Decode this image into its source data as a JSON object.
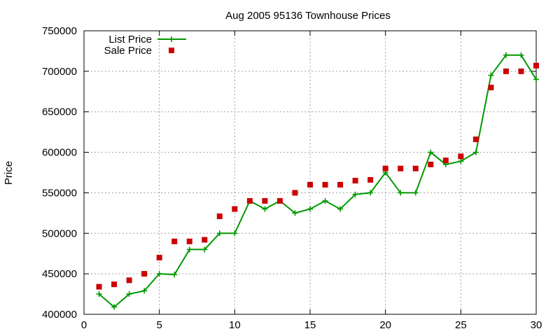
{
  "chart_data": {
    "type": "line",
    "title": "Aug 2005 95136 Townhouse Prices",
    "xlabel": "",
    "ylabel": "Price",
    "xlim": [
      0,
      30
    ],
    "ylim": [
      400000,
      750000
    ],
    "xticks": [
      0,
      5,
      10,
      15,
      20,
      25,
      30
    ],
    "yticks": [
      400000,
      450000,
      500000,
      550000,
      600000,
      650000,
      700000,
      750000
    ],
    "grid": true,
    "legend_position": "top-left",
    "x": [
      1,
      2,
      3,
      4,
      5,
      6,
      7,
      8,
      9,
      10,
      11,
      12,
      13,
      14,
      15,
      16,
      17,
      18,
      19,
      20,
      21,
      22,
      23,
      24,
      25,
      26,
      27,
      28,
      29,
      30
    ],
    "series": [
      {
        "name": "List Price",
        "style": "line-with-plus-markers",
        "color": "#009900",
        "values": [
          425000,
          409000,
          425000,
          429000,
          450000,
          449000,
          480000,
          480000,
          500000,
          500000,
          540000,
          530000,
          540000,
          525000,
          530000,
          540000,
          530000,
          548000,
          550000,
          575000,
          550000,
          550000,
          600000,
          585000,
          589000,
          600000,
          695000,
          720000,
          720000,
          690000
        ]
      },
      {
        "name": "Sale Price",
        "style": "square-markers",
        "color": "#cc0000",
        "values": [
          434000,
          437000,
          442000,
          450000,
          470000,
          490000,
          490000,
          492000,
          521000,
          530000,
          540000,
          540000,
          540000,
          550000,
          560000,
          560000,
          560000,
          565000,
          566000,
          580000,
          580000,
          580000,
          585000,
          590000,
          595000,
          616000,
          680000,
          700000,
          700000,
          707000
        ]
      }
    ]
  }
}
